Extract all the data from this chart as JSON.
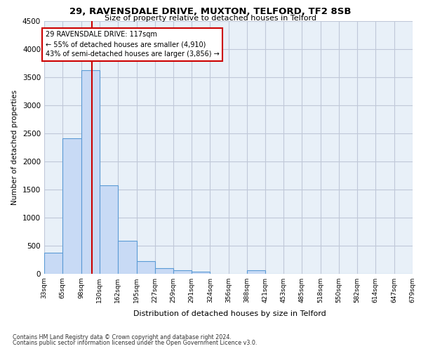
{
  "title1": "29, RAVENSDALE DRIVE, MUXTON, TELFORD, TF2 8SB",
  "title2": "Size of property relative to detached houses in Telford",
  "xlabel": "Distribution of detached houses by size in Telford",
  "ylabel": "Number of detached properties",
  "footnote1": "Contains HM Land Registry data © Crown copyright and database right 2024.",
  "footnote2": "Contains public sector information licensed under the Open Government Licence v3.0.",
  "annotation_line1": "29 RAVENSDALE DRIVE: 117sqm",
  "annotation_line2": "← 55% of detached houses are smaller (4,910)",
  "annotation_line3": "43% of semi-detached houses are larger (3,856) →",
  "subject_value": 117,
  "bin_edges": [
    33,
    65,
    98,
    130,
    162,
    195,
    227,
    259,
    291,
    324,
    356,
    388,
    421,
    453,
    485,
    518,
    550,
    582,
    614,
    647,
    679
  ],
  "bin_counts": [
    370,
    2410,
    3620,
    1580,
    590,
    220,
    105,
    60,
    40,
    0,
    0,
    60,
    0,
    0,
    0,
    0,
    0,
    0,
    0,
    0
  ],
  "bar_color": "#c8daf5",
  "bar_edge_color": "#5b9bd5",
  "vline_color": "#cc0000",
  "annotation_box_edge": "#cc0000",
  "grid_color": "#c0c8d8",
  "bg_color": "#e8f0f8",
  "ylim": [
    0,
    4500
  ],
  "yticks": [
    0,
    500,
    1000,
    1500,
    2000,
    2500,
    3000,
    3500,
    4000,
    4500
  ]
}
